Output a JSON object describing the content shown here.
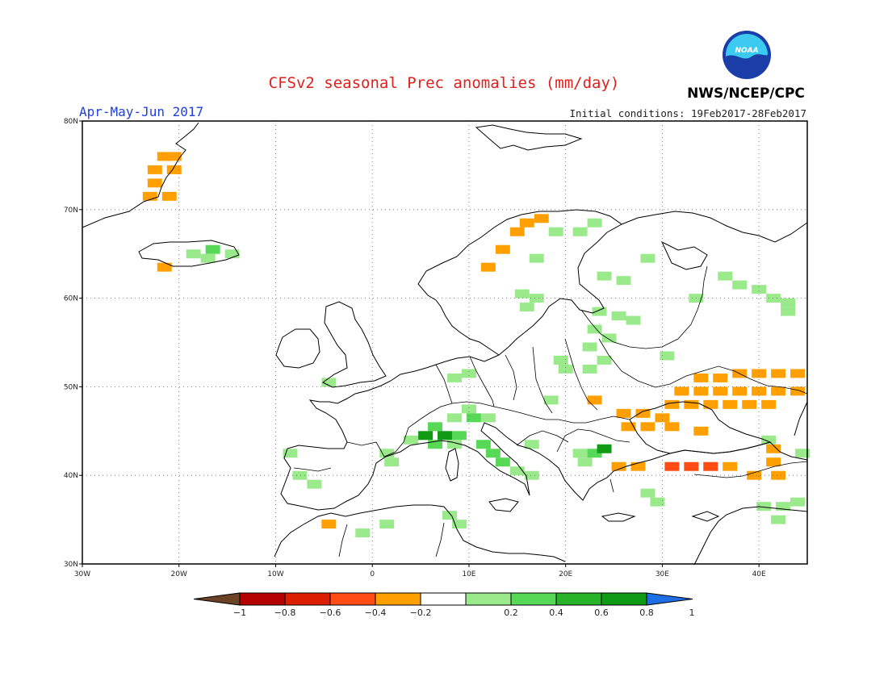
{
  "header": {
    "title": "CFSv2 seasonal Prec anomalies (mm/day)",
    "season": "Apr-May-Jun 2017",
    "agency": "NWS/NCEP/CPC",
    "initial_conditions": "Initial conditions: 19Feb2017-28Feb2017",
    "logo_text": "NOAA"
  },
  "map": {
    "lon_range": [
      -30,
      45
    ],
    "lat_range": [
      30,
      80
    ],
    "x_ticks": [
      {
        "value": -30,
        "label": "30W"
      },
      {
        "value": -20,
        "label": "20W"
      },
      {
        "value": -10,
        "label": "10W"
      },
      {
        "value": 0,
        "label": "0"
      },
      {
        "value": 10,
        "label": "10E"
      },
      {
        "value": 20,
        "label": "20E"
      },
      {
        "value": 30,
        "label": "30E"
      },
      {
        "value": 40,
        "label": "40E"
      }
    ],
    "y_ticks": [
      {
        "value": 30,
        "label": "30N"
      },
      {
        "value": 40,
        "label": "40N"
      },
      {
        "value": 50,
        "label": "50N"
      },
      {
        "value": 60,
        "label": "60N"
      },
      {
        "value": 70,
        "label": "70N"
      },
      {
        "value": 80,
        "label": "80N"
      }
    ],
    "gridlines": true,
    "land_outline_color": "#000000",
    "ocean_color": "#ffffff"
  },
  "legend": {
    "tick_labels": [
      "-1",
      "-0.8",
      "-0.6",
      "-0.4",
      "-0.2",
      "0.2",
      "0.4",
      "0.6",
      "0.8",
      "1"
    ],
    "bins": [
      {
        "range": [
          -99,
          -1
        ],
        "color": "#6b4226"
      },
      {
        "range": [
          -1,
          -0.8
        ],
        "color": "#b40000"
      },
      {
        "range": [
          -0.8,
          -0.6
        ],
        "color": "#dc1e00"
      },
      {
        "range": [
          -0.6,
          -0.4
        ],
        "color": "#ff4b14"
      },
      {
        "range": [
          -0.4,
          -0.2
        ],
        "color": "#ffa000"
      },
      {
        "range": [
          -0.2,
          0.2
        ],
        "color": "#ffffff"
      },
      {
        "range": [
          0.2,
          0.4
        ],
        "color": "#9aea8c"
      },
      {
        "range": [
          0.4,
          0.6
        ],
        "color": "#57d957"
      },
      {
        "range": [
          0.6,
          0.8
        ],
        "color": "#28b428"
      },
      {
        "range": [
          0.8,
          1
        ],
        "color": "#0f9b14"
      },
      {
        "range": [
          1,
          99
        ],
        "color": "#1e6ee6"
      }
    ]
  },
  "anomalies": [
    {
      "lon": -21.5,
      "lat": 76,
      "value": -0.3
    },
    {
      "lon": -22.5,
      "lat": 74.5,
      "value": -0.3
    },
    {
      "lon": -22.5,
      "lat": 73,
      "value": -0.3
    },
    {
      "lon": -23,
      "lat": 71.5,
      "value": -0.3
    },
    {
      "lon": -21,
      "lat": 71.5,
      "value": -0.3
    },
    {
      "lon": -20.5,
      "lat": 74.5,
      "value": -0.3
    },
    {
      "lon": -20.5,
      "lat": 76,
      "value": -0.3
    },
    {
      "lon": -21.5,
      "lat": 63.5,
      "value": -0.3
    },
    {
      "lon": -18.5,
      "lat": 65,
      "value": 0.3
    },
    {
      "lon": -16.5,
      "lat": 65.5,
      "value": 0.5
    },
    {
      "lon": -14.5,
      "lat": 65,
      "value": 0.3
    },
    {
      "lon": -17,
      "lat": 64.5,
      "value": 0.3
    },
    {
      "lon": 12,
      "lat": 63.5,
      "value": -0.3
    },
    {
      "lon": 13.5,
      "lat": 65.5,
      "value": -0.3
    },
    {
      "lon": 15,
      "lat": 67.5,
      "value": -0.3
    },
    {
      "lon": 16,
      "lat": 68.5,
      "value": -0.3
    },
    {
      "lon": 17.5,
      "lat": 69,
      "value": -0.3
    },
    {
      "lon": 19,
      "lat": 67.5,
      "value": 0.3
    },
    {
      "lon": 21.5,
      "lat": 67.5,
      "value": 0.3
    },
    {
      "lon": 23,
      "lat": 68.5,
      "value": 0.3
    },
    {
      "lon": 17,
      "lat": 64.5,
      "value": 0.3
    },
    {
      "lon": 15.5,
      "lat": 60.5,
      "value": 0.3
    },
    {
      "lon": 17,
      "lat": 60,
      "value": 0.3
    },
    {
      "lon": 16,
      "lat": 59,
      "value": 0.3
    },
    {
      "lon": 24,
      "lat": 62.5,
      "value": 0.3
    },
    {
      "lon": 26,
      "lat": 62,
      "value": 0.3
    },
    {
      "lon": 28.5,
      "lat": 64.5,
      "value": 0.3
    },
    {
      "lon": 23.5,
      "lat": 58.5,
      "value": 0.3
    },
    {
      "lon": 25.5,
      "lat": 58,
      "value": 0.3
    },
    {
      "lon": 27,
      "lat": 57.5,
      "value": 0.3
    },
    {
      "lon": 23,
      "lat": 56.5,
      "value": 0.3
    },
    {
      "lon": 24.5,
      "lat": 55.5,
      "value": 0.3
    },
    {
      "lon": 22.5,
      "lat": 54.5,
      "value": 0.3
    },
    {
      "lon": 24,
      "lat": 53,
      "value": 0.3
    },
    {
      "lon": 19.5,
      "lat": 53,
      "value": 0.3
    },
    {
      "lon": 20,
      "lat": 52,
      "value": 0.3
    },
    {
      "lon": 22.5,
      "lat": 52,
      "value": 0.3
    },
    {
      "lon": 30.5,
      "lat": 53.5,
      "value": 0.3
    },
    {
      "lon": 10,
      "lat": 51.5,
      "value": 0.3
    },
    {
      "lon": 8.5,
      "lat": 51,
      "value": 0.3
    },
    {
      "lon": -4.5,
      "lat": 50.5,
      "value": 0.3
    },
    {
      "lon": 18.5,
      "lat": 48.5,
      "value": 0.3
    },
    {
      "lon": 10,
      "lat": 47.5,
      "value": 0.3
    },
    {
      "lon": 8.5,
      "lat": 46.5,
      "value": 0.3
    },
    {
      "lon": 10.5,
      "lat": 46.5,
      "value": 0.5
    },
    {
      "lon": 12,
      "lat": 46.5,
      "value": 0.3
    },
    {
      "lon": 6.5,
      "lat": 45.5,
      "value": 0.5
    },
    {
      "lon": 5.5,
      "lat": 44.5,
      "value": 0.8
    },
    {
      "lon": 7.5,
      "lat": 44.5,
      "value": 0.8
    },
    {
      "lon": 9,
      "lat": 44.5,
      "value": 0.5
    },
    {
      "lon": 4,
      "lat": 44,
      "value": 0.3
    },
    {
      "lon": 6.5,
      "lat": 43.5,
      "value": 0.5
    },
    {
      "lon": 8.5,
      "lat": 43.5,
      "value": 0.3
    },
    {
      "lon": 11.5,
      "lat": 43.5,
      "value": 0.5
    },
    {
      "lon": 12.5,
      "lat": 42.5,
      "value": 0.5
    },
    {
      "lon": 13.5,
      "lat": 41.5,
      "value": 0.5
    },
    {
      "lon": 15,
      "lat": 40.5,
      "value": 0.3
    },
    {
      "lon": 16.5,
      "lat": 40,
      "value": 0.3
    },
    {
      "lon": 16.5,
      "lat": 43.5,
      "value": 0.3
    },
    {
      "lon": 1.5,
      "lat": 42.5,
      "value": 0.3
    },
    {
      "lon": 2,
      "lat": 41.5,
      "value": 0.3
    },
    {
      "lon": 21.5,
      "lat": 42.5,
      "value": 0.3
    },
    {
      "lon": 23,
      "lat": 42.5,
      "value": 0.5
    },
    {
      "lon": 24,
      "lat": 43,
      "value": 0.8
    },
    {
      "lon": 22,
      "lat": 41.5,
      "value": 0.3
    },
    {
      "lon": -8.5,
      "lat": 42.5,
      "value": 0.3
    },
    {
      "lon": -7.5,
      "lat": 40,
      "value": 0.3
    },
    {
      "lon": -6,
      "lat": 39,
      "value": 0.3
    },
    {
      "lon": 8,
      "lat": 35.5,
      "value": 0.3
    },
    {
      "lon": 9,
      "lat": 34.5,
      "value": 0.3
    },
    {
      "lon": 1.5,
      "lat": 34.5,
      "value": 0.3
    },
    {
      "lon": -1,
      "lat": 33.5,
      "value": 0.3
    },
    {
      "lon": -4.5,
      "lat": 34.5,
      "value": -0.3
    },
    {
      "lon": 29.5,
      "lat": 37,
      "value": 0.3
    },
    {
      "lon": 36.5,
      "lat": 62.5,
      "value": 0.3
    },
    {
      "lon": 38,
      "lat": 61.5,
      "value": 0.3
    },
    {
      "lon": 40,
      "lat": 61,
      "value": 0.3
    },
    {
      "lon": 41.5,
      "lat": 60,
      "value": 0.3
    },
    {
      "lon": 43,
      "lat": 59.5,
      "value": 0.3
    },
    {
      "lon": 33.5,
      "lat": 60,
      "value": 0.3
    },
    {
      "lon": 43,
      "lat": 58.5,
      "value": 0.3
    },
    {
      "lon": 34,
      "lat": 51,
      "value": -0.3
    },
    {
      "lon": 36,
      "lat": 51,
      "value": -0.3
    },
    {
      "lon": 38,
      "lat": 51.5,
      "value": -0.3
    },
    {
      "lon": 40,
      "lat": 51.5,
      "value": -0.3
    },
    {
      "lon": 42,
      "lat": 51.5,
      "value": -0.3
    },
    {
      "lon": 44,
      "lat": 51.5,
      "value": -0.3
    },
    {
      "lon": 32,
      "lat": 49.5,
      "value": -0.3
    },
    {
      "lon": 34,
      "lat": 49.5,
      "value": -0.3
    },
    {
      "lon": 36,
      "lat": 49.5,
      "value": -0.3
    },
    {
      "lon": 38,
      "lat": 49.5,
      "value": -0.3
    },
    {
      "lon": 40,
      "lat": 49.5,
      "value": -0.3
    },
    {
      "lon": 42,
      "lat": 49.5,
      "value": -0.3
    },
    {
      "lon": 44,
      "lat": 49.5,
      "value": -0.3
    },
    {
      "lon": 31,
      "lat": 48,
      "value": -0.3
    },
    {
      "lon": 33,
      "lat": 48,
      "value": -0.3
    },
    {
      "lon": 35,
      "lat": 48,
      "value": -0.3
    },
    {
      "lon": 37,
      "lat": 48,
      "value": -0.3
    },
    {
      "lon": 39,
      "lat": 48,
      "value": -0.3
    },
    {
      "lon": 41,
      "lat": 48,
      "value": -0.3
    },
    {
      "lon": 26,
      "lat": 47,
      "value": -0.3
    },
    {
      "lon": 28,
      "lat": 47,
      "value": -0.3
    },
    {
      "lon": 30,
      "lat": 46.5,
      "value": -0.3
    },
    {
      "lon": 26.5,
      "lat": 45.5,
      "value": -0.3
    },
    {
      "lon": 28.5,
      "lat": 45.5,
      "value": -0.3
    },
    {
      "lon": 31,
      "lat": 45.5,
      "value": -0.3
    },
    {
      "lon": 34,
      "lat": 45,
      "value": -0.3
    },
    {
      "lon": 23,
      "lat": 48.5,
      "value": -0.3
    },
    {
      "lon": 41.5,
      "lat": 43,
      "value": -0.3
    },
    {
      "lon": 41.5,
      "lat": 41.5,
      "value": -0.3
    },
    {
      "lon": 39.5,
      "lat": 40,
      "value": -0.3
    },
    {
      "lon": 42,
      "lat": 40,
      "value": -0.3
    },
    {
      "lon": 25.5,
      "lat": 41,
      "value": -0.3
    },
    {
      "lon": 27.5,
      "lat": 41,
      "value": -0.3
    },
    {
      "lon": 31,
      "lat": 41,
      "value": -0.5
    },
    {
      "lon": 33,
      "lat": 41,
      "value": -0.5
    },
    {
      "lon": 35,
      "lat": 41,
      "value": -0.5
    },
    {
      "lon": 37,
      "lat": 41,
      "value": -0.3
    },
    {
      "lon": 41,
      "lat": 44,
      "value": 0.3
    },
    {
      "lon": 44.5,
      "lat": 42.5,
      "value": 0.3
    },
    {
      "lon": 40.5,
      "lat": 36.5,
      "value": 0.3
    },
    {
      "lon": 42.5,
      "lat": 36.5,
      "value": 0.3
    },
    {
      "lon": 44,
      "lat": 37,
      "value": 0.3
    },
    {
      "lon": 42,
      "lat": 35,
      "value": 0.3
    },
    {
      "lon": 28.5,
      "lat": 38,
      "value": 0.3
    }
  ]
}
